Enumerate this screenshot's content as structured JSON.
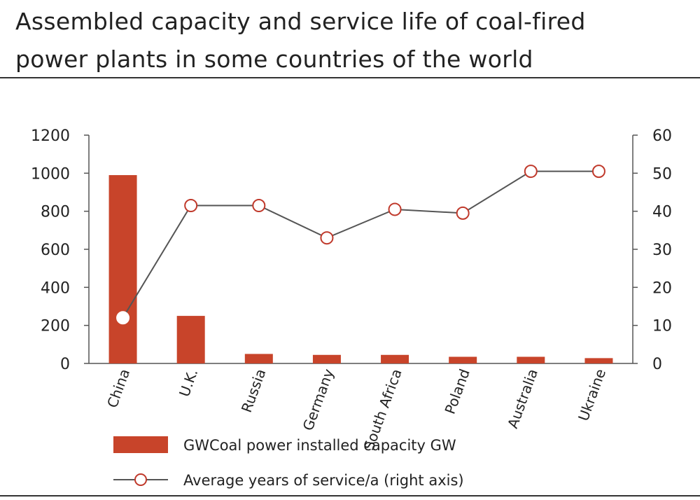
{
  "title_line1": "Assembled capacity and service life of coal-fired",
  "title_line2": "power plants in some countries of the world",
  "chart_data": {
    "type": "bar",
    "categories": [
      "China",
      "U.K.",
      "Russia",
      "Germany",
      "South Africa",
      "Poland",
      "Australia",
      "Ukraine"
    ],
    "series": [
      {
        "name": "GWCoal power installed capacity GW",
        "type": "bar",
        "axis": "left",
        "color": "#c8442a",
        "values": [
          990,
          250,
          50,
          45,
          45,
          35,
          35,
          28
        ]
      },
      {
        "name": "Average years of service/a (right axis)",
        "type": "line",
        "axis": "right",
        "color": "#555555",
        "marker_color": "#c0392b",
        "values": [
          12,
          41.5,
          41.5,
          33,
          40.5,
          39.5,
          50.5,
          50.5
        ]
      }
    ],
    "y_left": {
      "ylim": [
        0,
        1200
      ],
      "ticks": [
        0,
        200,
        400,
        600,
        800,
        1000,
        1200
      ]
    },
    "y_right": {
      "ylim": [
        0,
        60
      ],
      "ticks": [
        0,
        10,
        20,
        30,
        40,
        50,
        60
      ]
    },
    "grid": false,
    "legend_position": "bottom"
  }
}
